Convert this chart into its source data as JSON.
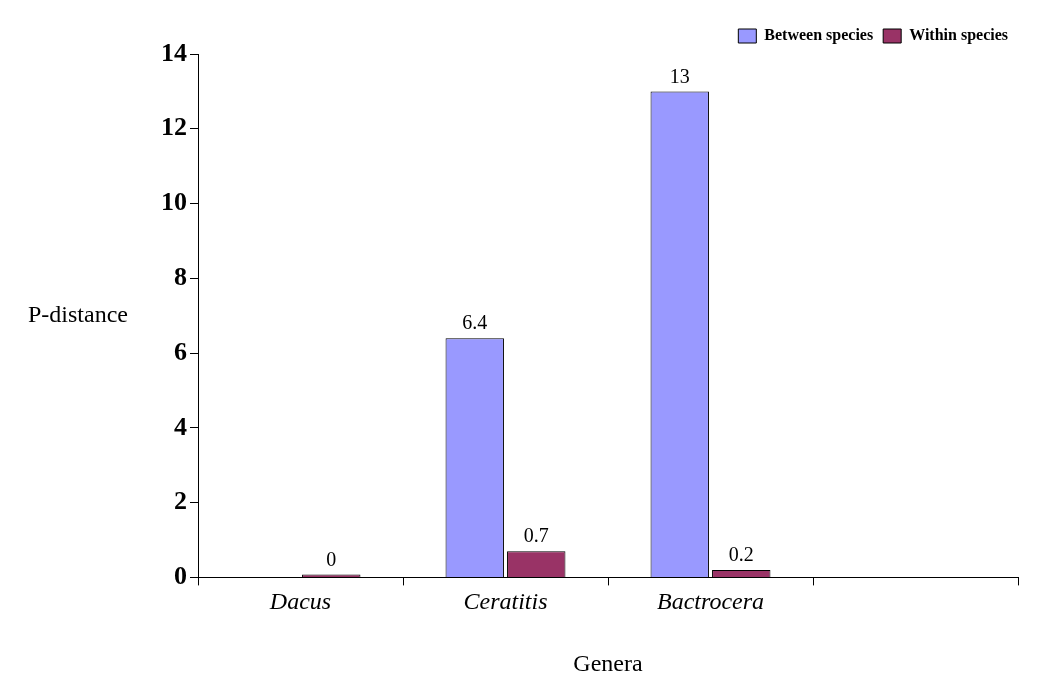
{
  "chart_data": {
    "type": "bar",
    "xlabel": "Genera",
    "ylabel": "P-distance",
    "categories": [
      "Dacus",
      "Ceratitis",
      "Bactrocera",
      null
    ],
    "series": [
      {
        "name": "Between species",
        "color": "#9999ff",
        "values": [
          null,
          6.4,
          13,
          null
        ]
      },
      {
        "name": "Within species",
        "color": "#993366",
        "values": [
          0,
          0.7,
          0.2,
          null
        ]
      }
    ],
    "ylim": [
      0,
      14
    ],
    "yticks": [
      0,
      2,
      4,
      6,
      8,
      10,
      12,
      14
    ],
    "grid": false,
    "legend": "top right",
    "data_labels": true
  }
}
